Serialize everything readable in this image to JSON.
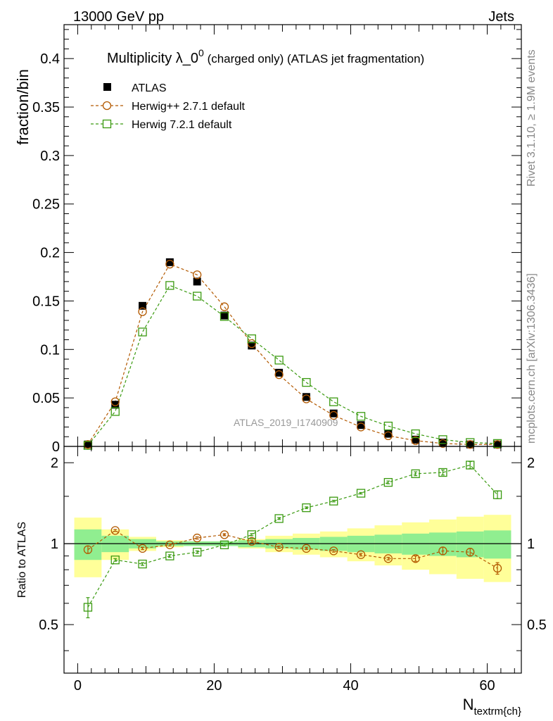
{
  "header": {
    "left": "13000 GeV pp",
    "right": "Jets"
  },
  "title": {
    "main": "Multiplicity λ_0",
    "superscript": "0",
    "rest": " (charged only) (ATLAS jet fragmentation)"
  },
  "side_labels": {
    "rivet": "Rivet 3.1.10, ≥ 1.9M events",
    "mcplots": "mcplots.cern.ch [arXiv:1306.3436]"
  },
  "watermark": "ATLAS_2019_I1740909",
  "chart_data": [
    {
      "type": "scatter",
      "ylabel": "fraction/bin",
      "xlim": [
        -2,
        65
      ],
      "ylim": [
        0,
        0.435
      ],
      "grid": false,
      "legend_placement": "top-left",
      "y_ticks": [
        0,
        0.05,
        0.1,
        0.15,
        0.2,
        0.25,
        0.3,
        0.35,
        0.4
      ],
      "y_tick_labels": [
        "0",
        "0.05",
        "0.1",
        "0.15",
        "0.2",
        "0.25",
        "0.3",
        "0.35",
        "0.4"
      ],
      "x": [
        1.5,
        5.5,
        9.5,
        13.5,
        17.5,
        21.5,
        25.5,
        29.5,
        33.5,
        37.5,
        41.5,
        45.5,
        49.5,
        53.5,
        57.5,
        61.5
      ],
      "series": [
        {
          "name": "ATLAS",
          "color": "#000000",
          "marker": "filled-square",
          "values": [
            0.002,
            0.043,
            0.145,
            0.19,
            0.17,
            0.135,
            0.104,
            0.076,
            0.051,
            0.034,
            0.022,
            0.013,
            0.007,
            0.004,
            0.002,
            0.002
          ]
        },
        {
          "name": "Herwig++ 2.7.1 default",
          "color": "#b35900",
          "marker": "open-circle",
          "line": "dashed",
          "values": [
            0.002,
            0.046,
            0.139,
            0.188,
            0.177,
            0.144,
            0.106,
            0.074,
            0.049,
            0.032,
            0.02,
            0.011,
            0.006,
            0.003,
            0.002,
            0.002
          ]
        },
        {
          "name": "Herwig 7.2.1 default",
          "color": "#3a9a10",
          "marker": "open-square",
          "line": "dashed",
          "values": [
            0.001,
            0.036,
            0.118,
            0.166,
            0.155,
            0.134,
            0.111,
            0.089,
            0.066,
            0.046,
            0.031,
            0.021,
            0.013,
            0.007,
            0.004,
            0.003
          ]
        }
      ]
    },
    {
      "type": "scatter",
      "xlabel": "N_textrm{ch}",
      "xlabel_main": "N",
      "xlabel_sub": "textrm{ch}",
      "ylabel": "Ratio to ATLAS",
      "xlim": [
        -2,
        65
      ],
      "ylim": [
        0.33,
        2.3
      ],
      "grid": false,
      "x_ticks": [
        0,
        20,
        40,
        60
      ],
      "x_tick_labels": [
        "0",
        "20",
        "40",
        "60"
      ],
      "y_ticks": [
        0.5,
        1,
        2
      ],
      "y_tick_labels": [
        "0.5",
        "1",
        "2"
      ],
      "reference_line": 1,
      "x": [
        1.5,
        5.5,
        9.5,
        13.5,
        17.5,
        21.5,
        25.5,
        29.5,
        33.5,
        37.5,
        41.5,
        45.5,
        49.5,
        53.5,
        57.5,
        61.5
      ],
      "bin_edges": [
        -0.5,
        3.5,
        7.5,
        11.5,
        15.5,
        19.5,
        23.5,
        27.5,
        31.5,
        35.5,
        39.5,
        43.5,
        47.5,
        51.5,
        55.5,
        59.5,
        63.5
      ],
      "uncertainty_bands": {
        "inner_color": "#90ee90",
        "outer_color": "#ffff99",
        "inner": [
          0.13,
          0.07,
          0.04,
          0.02,
          0.02,
          0.02,
          0.03,
          0.04,
          0.05,
          0.06,
          0.07,
          0.08,
          0.09,
          0.1,
          0.11,
          0.12
        ],
        "outer": [
          0.25,
          0.13,
          0.06,
          0.03,
          0.02,
          0.02,
          0.04,
          0.07,
          0.09,
          0.11,
          0.14,
          0.17,
          0.2,
          0.23,
          0.26,
          0.28
        ]
      },
      "series": [
        {
          "name": "Herwig++ 2.7.1 default",
          "color": "#b35900",
          "marker": "open-circle",
          "values": [
            0.95,
            1.12,
            0.96,
            0.99,
            1.05,
            1.08,
            1.02,
            0.97,
            0.96,
            0.94,
            0.91,
            0.88,
            0.88,
            0.94,
            0.93,
            0.81
          ],
          "errors": [
            0.03,
            0.01,
            0.01,
            0.01,
            0.01,
            0.01,
            0.01,
            0.01,
            0.01,
            0.01,
            0.01,
            0.01,
            0.02,
            0.03,
            0.03,
            0.04
          ]
        },
        {
          "name": "Herwig 7.2.1 default",
          "color": "#3a9a10",
          "marker": "open-square",
          "values": [
            0.58,
            0.87,
            0.84,
            0.9,
            0.93,
            0.99,
            1.08,
            1.24,
            1.36,
            1.44,
            1.54,
            1.69,
            1.82,
            1.84,
            1.96,
            1.52
          ],
          "errors": [
            0.05,
            0.01,
            0.01,
            0.01,
            0.01,
            0.01,
            0.01,
            0.01,
            0.01,
            0.01,
            0.01,
            0.02,
            0.03,
            0.04,
            0.06,
            0.05
          ]
        }
      ]
    }
  ]
}
